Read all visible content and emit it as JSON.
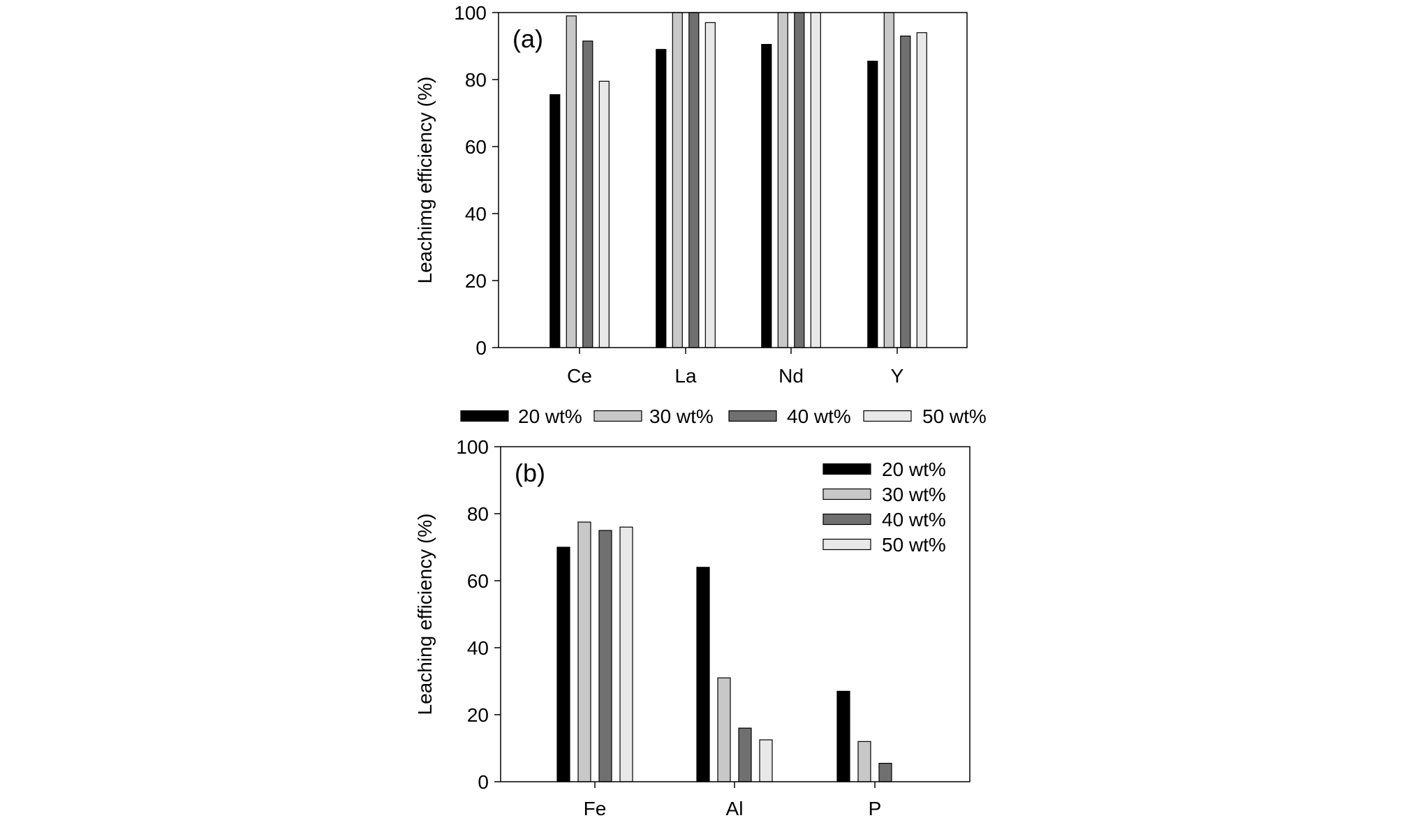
{
  "chart_data": [
    {
      "type": "bar",
      "panel_label": "(a)",
      "title": "",
      "xlabel": "",
      "ylabel": "Leachimg efficiency (%)",
      "ylim": [
        0,
        100
      ],
      "yticks": [
        0,
        20,
        40,
        60,
        80,
        100
      ],
      "grid": false,
      "categories": [
        "Ce",
        "La",
        "Nd",
        "Y"
      ],
      "legend_position": "below",
      "series": [
        {
          "name": "20 wt%",
          "color": "#000000",
          "values": [
            75.5,
            89,
            90.5,
            85.5
          ]
        },
        {
          "name": "30 wt%",
          "color": "#c8c8c8",
          "values": [
            99,
            100,
            100,
            100
          ]
        },
        {
          "name": "40 wt%",
          "color": "#707070",
          "values": [
            91.5,
            100,
            100,
            93
          ]
        },
        {
          "name": "50 wt%",
          "color": "#e8e8e8",
          "values": [
            79.5,
            97,
            100,
            94
          ]
        }
      ]
    },
    {
      "type": "bar",
      "panel_label": "(b)",
      "title": "",
      "xlabel": "",
      "ylabel": "Leaching efficiency (%)",
      "ylim": [
        0,
        100
      ],
      "yticks": [
        0,
        20,
        40,
        60,
        80,
        100
      ],
      "grid": false,
      "categories": [
        "Fe",
        "Al",
        "P"
      ],
      "legend_position": "top-right",
      "series": [
        {
          "name": "20 wt%",
          "color": "#000000",
          "values": [
            70,
            64,
            27
          ]
        },
        {
          "name": "30 wt%",
          "color": "#c8c8c8",
          "values": [
            77.5,
            31,
            12
          ]
        },
        {
          "name": "40 wt%",
          "color": "#707070",
          "values": [
            75,
            16,
            5.5
          ]
        },
        {
          "name": "50 wt%",
          "color": "#e8e8e8",
          "values": [
            76,
            12.5,
            0
          ]
        }
      ]
    }
  ]
}
